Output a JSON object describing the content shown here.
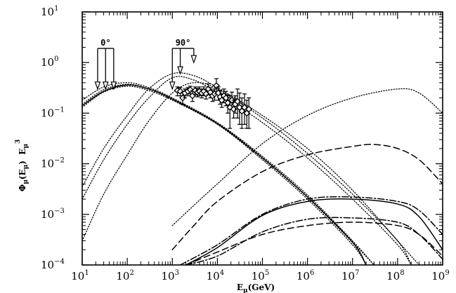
{
  "chart_data": {
    "type": "line",
    "title": "",
    "xlabel": {
      "main": "E",
      "sub": "μ",
      "tail": "(GeV)"
    },
    "ylabel": {
      "pre": "Φ",
      "sub1": "μ",
      "mid": "(E",
      "sub2": "μ",
      "post": ")  E",
      "sub3": "μ",
      "sup": "3"
    },
    "x_scale": "log",
    "y_scale": "log",
    "xlim": [
      10,
      1000000000
    ],
    "ylim": [
      0.0001,
      10
    ],
    "x_ticks": [
      {
        "value": 10,
        "base": "10",
        "exp": "1"
      },
      {
        "value": 100,
        "base": "10",
        "exp": "2"
      },
      {
        "value": 1000,
        "base": "10",
        "exp": "3"
      },
      {
        "value": 10000,
        "base": "10",
        "exp": "4"
      },
      {
        "value": 100000,
        "base": "10",
        "exp": "5"
      },
      {
        "value": 1000000,
        "base": "10",
        "exp": "6"
      },
      {
        "value": 10000000,
        "base": "10",
        "exp": "7"
      },
      {
        "value": 100000000,
        "base": "10",
        "exp": "8"
      },
      {
        "value": 1000000000,
        "base": "10",
        "exp": "9"
      }
    ],
    "y_ticks": [
      {
        "value": 0.0001,
        "base": "10",
        "exp": "−4"
      },
      {
        "value": 0.001,
        "base": "10",
        "exp": "−3"
      },
      {
        "value": 0.01,
        "base": "10",
        "exp": "−2"
      },
      {
        "value": 0.1,
        "base": "10",
        "exp": "−1"
      },
      {
        "value": 1,
        "base": "10",
        "exp": "0"
      },
      {
        "value": 10,
        "base": "10",
        "exp": "1"
      }
    ],
    "grid": false,
    "annotations": [
      {
        "text": "0°",
        "arrows_at_x": [
          22,
          33,
          50
        ],
        "arrow_y_top": 1.9,
        "arrow_y_tip": 0.3
      },
      {
        "text": "90°",
        "arrows_at_x": [
          1000,
          1500,
          3000
        ],
        "arrow_y_top": 1.9,
        "arrow_y_tip": [
          0.3,
          0.6,
          1.0
        ]
      }
    ],
    "series": [
      {
        "style": "dotted",
        "points": [
          [
            10,
            0.18
          ],
          [
            30,
            0.33
          ],
          [
            100,
            0.4
          ],
          [
            300,
            0.32
          ],
          [
            1000,
            0.2
          ],
          [
            10000,
            0.065
          ],
          [
            100000,
            0.014
          ],
          [
            1000000,
            0.0024
          ],
          [
            10000000,
            0.0003
          ],
          [
            30000000,
            0.0001
          ]
        ]
      },
      {
        "style": "dotted",
        "points": [
          [
            10,
            0.15
          ],
          [
            30,
            0.29
          ],
          [
            100,
            0.37
          ],
          [
            300,
            0.3
          ],
          [
            1000,
            0.19
          ],
          [
            10000,
            0.062
          ],
          [
            100000,
            0.013
          ],
          [
            1000000,
            0.0022
          ],
          [
            10000000,
            0.00028
          ],
          [
            30000000,
            0.0001
          ]
        ]
      },
      {
        "style": "dotted",
        "points": [
          [
            10,
            0.13
          ],
          [
            30,
            0.26
          ],
          [
            100,
            0.34
          ],
          [
            300,
            0.28
          ],
          [
            1000,
            0.18
          ],
          [
            10000,
            0.06
          ],
          [
            100000,
            0.012
          ],
          [
            1000000,
            0.002
          ],
          [
            10000000,
            0.00025
          ],
          [
            20000000,
            0.0001
          ]
        ]
      },
      {
        "style": "dotted",
        "points": [
          [
            10,
            0.0035
          ],
          [
            30,
            0.02
          ],
          [
            100,
            0.09
          ],
          [
            300,
            0.3
          ],
          [
            1000,
            0.6
          ],
          [
            3000,
            0.55
          ],
          [
            10000,
            0.32
          ],
          [
            100000,
            0.09
          ],
          [
            1000000,
            0.02
          ],
          [
            10000000,
            0.003
          ],
          [
            100000000,
            0.0003
          ],
          [
            300000000,
            0.0001
          ]
        ]
      },
      {
        "style": "dotted",
        "points": [
          [
            10,
            0.002
          ],
          [
            30,
            0.012
          ],
          [
            100,
            0.06
          ],
          [
            300,
            0.2
          ],
          [
            1000,
            0.5
          ],
          [
            3000,
            0.45
          ],
          [
            10000,
            0.25
          ],
          [
            100000,
            0.065
          ],
          [
            1000000,
            0.013
          ],
          [
            10000000,
            0.002
          ],
          [
            100000000,
            0.00025
          ],
          [
            200000000,
            0.0001
          ]
        ]
      },
      {
        "style": "dotted",
        "points": [
          [
            10,
            0.0003
          ],
          [
            30,
            0.0025
          ],
          [
            100,
            0.015
          ],
          [
            300,
            0.07
          ],
          [
            1000,
            0.25
          ],
          [
            3000,
            0.4
          ],
          [
            10000,
            0.3
          ],
          [
            100000,
            0.08
          ],
          [
            1000000,
            0.016
          ],
          [
            10000000,
            0.0025
          ],
          [
            100000000,
            0.0003
          ],
          [
            200000000,
            0.0001
          ]
        ]
      },
      {
        "style": "dotted",
        "points": [
          [
            1000,
            0.0006
          ],
          [
            3000,
            0.0015
          ],
          [
            10000,
            0.004
          ],
          [
            100000,
            0.025
          ],
          [
            1000000,
            0.09
          ],
          [
            10000000,
            0.2
          ],
          [
            100000000,
            0.3
          ],
          [
            300000000,
            0.25
          ],
          [
            1000000000,
            0.1
          ]
        ]
      },
      {
        "style": "solid",
        "points": [
          [
            10,
            0.14
          ],
          [
            30,
            0.27
          ],
          [
            100,
            0.36
          ],
          [
            300,
            0.3
          ],
          [
            1000,
            0.19
          ],
          [
            10000,
            0.062
          ],
          [
            100000,
            0.013
          ],
          [
            1000000,
            0.0022
          ],
          [
            10000000,
            0.00028
          ],
          [
            20000000,
            0.0001
          ]
        ]
      },
      {
        "style": "solid",
        "points": [
          [
            2000,
            0.0001
          ],
          [
            10000,
            0.00022
          ],
          [
            100000,
            0.00095
          ],
          [
            1000000,
            0.0018
          ],
          [
            10000000,
            0.002
          ],
          [
            100000000,
            0.0016
          ],
          [
            300000000,
            0.0009
          ],
          [
            1000000000,
            0.0002
          ]
        ]
      },
      {
        "style": "dashed",
        "points": [
          [
            1000,
            0.0002
          ],
          [
            3000,
            0.0006
          ],
          [
            10000,
            0.0018
          ],
          [
            100000,
            0.007
          ],
          [
            1000000,
            0.015
          ],
          [
            10000000,
            0.022
          ],
          [
            30000000,
            0.024
          ],
          [
            100000000,
            0.02
          ],
          [
            300000000,
            0.012
          ],
          [
            1000000000,
            0.004
          ]
        ]
      },
      {
        "style": "dashed",
        "points": [
          [
            2000,
            0.0001
          ],
          [
            10000,
            0.00018
          ],
          [
            100000,
            0.0004
          ],
          [
            1000000,
            0.0006
          ],
          [
            10000000,
            0.0007
          ],
          [
            100000000,
            0.0006
          ],
          [
            300000000,
            0.0004
          ],
          [
            1000000000,
            0.00015
          ]
        ]
      },
      {
        "style": "dashdot",
        "points": [
          [
            1500,
            0.0001
          ],
          [
            10000,
            0.00025
          ],
          [
            100000,
            0.001
          ],
          [
            1000000,
            0.002
          ],
          [
            10000000,
            0.0022
          ],
          [
            100000000,
            0.0018
          ],
          [
            300000000,
            0.0012
          ],
          [
            1000000000,
            0.0004
          ]
        ]
      },
      {
        "style": "dashdot",
        "points": [
          [
            2000,
            0.0001
          ],
          [
            10000,
            0.00015
          ],
          [
            100000,
            0.00045
          ],
          [
            1000000,
            0.0008
          ],
          [
            10000000,
            0.00085
          ],
          [
            100000000,
            0.0007
          ],
          [
            300000000,
            0.0004
          ],
          [
            1000000000,
            0.00013
          ]
        ]
      }
    ],
    "measurements": [
      {
        "x": 1300,
        "y": 0.28,
        "err_lo": 0.22,
        "err_hi": 0.33
      },
      {
        "x": 1500,
        "y": 0.27,
        "err_lo": 0.22,
        "err_hi": 0.32
      },
      {
        "x": 1700,
        "y": 0.2,
        "err_lo": 0.15,
        "err_hi": 0.26
      },
      {
        "x": 1900,
        "y": 0.25,
        "err_lo": 0.2,
        "err_hi": 0.3
      },
      {
        "x": 2200,
        "y": 0.27,
        "err_lo": 0.22,
        "err_hi": 0.32
      },
      {
        "x": 2500,
        "y": 0.29,
        "err_lo": 0.24,
        "err_hi": 0.34
      },
      {
        "x": 2800,
        "y": 0.22,
        "err_lo": 0.17,
        "err_hi": 0.28
      },
      {
        "x": 3200,
        "y": 0.28,
        "err_lo": 0.23,
        "err_hi": 0.33
      },
      {
        "x": 3600,
        "y": 0.26,
        "err_lo": 0.21,
        "err_hi": 0.31
      },
      {
        "x": 4000,
        "y": 0.27,
        "err_lo": 0.22,
        "err_hi": 0.33
      },
      {
        "x": 4500,
        "y": 0.25,
        "err_lo": 0.2,
        "err_hi": 0.3
      },
      {
        "x": 5000,
        "y": 0.27,
        "err_lo": 0.22,
        "err_hi": 0.33
      },
      {
        "x": 5600,
        "y": 0.24,
        "err_lo": 0.19,
        "err_hi": 0.29
      },
      {
        "x": 6300,
        "y": 0.3,
        "err_lo": 0.23,
        "err_hi": 0.38
      },
      {
        "x": 7000,
        "y": 0.26,
        "err_lo": 0.2,
        "err_hi": 0.32
      },
      {
        "x": 7800,
        "y": 0.22,
        "err_lo": 0.17,
        "err_hi": 0.28
      },
      {
        "x": 8700,
        "y": 0.24,
        "err_lo": 0.18,
        "err_hi": 0.3
      },
      {
        "x": 9500,
        "y": 0.35,
        "err_lo": 0.24,
        "err_hi": 0.48
      },
      {
        "x": 10500,
        "y": 0.25,
        "err_lo": 0.18,
        "err_hi": 0.33
      },
      {
        "x": 11500,
        "y": 0.21,
        "err_lo": 0.15,
        "err_hi": 0.28
      },
      {
        "x": 12500,
        "y": 0.18,
        "err_lo": 0.13,
        "err_hi": 0.24
      },
      {
        "x": 14000,
        "y": 0.22,
        "err_lo": 0.16,
        "err_hi": 0.3
      },
      {
        "x": 15500,
        "y": 0.2,
        "err_lo": 0.14,
        "err_hi": 0.27
      },
      {
        "x": 17000,
        "y": 0.16,
        "err_lo": 0.1,
        "err_hi": 0.23
      },
      {
        "x": 19000,
        "y": 0.13,
        "err_lo": 0.05,
        "err_hi": 0.22
      },
      {
        "x": 21000,
        "y": 0.18,
        "err_lo": 0.12,
        "err_hi": 0.26
      },
      {
        "x": 23000,
        "y": 0.12,
        "err_lo": 0.08,
        "err_hi": 0.18
      },
      {
        "x": 25000,
        "y": 0.15,
        "err_lo": 0.1,
        "err_hi": 0.22
      },
      {
        "x": 28000,
        "y": 0.17,
        "err_lo": 0.08,
        "err_hi": 0.3
      },
      {
        "x": 31000,
        "y": 0.13,
        "err_lo": 0.06,
        "err_hi": 0.25
      },
      {
        "x": 35000,
        "y": 0.11,
        "err_lo": 0.05,
        "err_hi": 0.2
      },
      {
        "x": 40000,
        "y": 0.13,
        "err_lo": 0.06,
        "err_hi": 0.24
      },
      {
        "x": 45000,
        "y": 0.1,
        "err_lo": 0.05,
        "err_hi": 0.18
      },
      {
        "x": 50000,
        "y": 0.12,
        "err_lo": 0.05,
        "err_hi": 0.2
      }
    ]
  }
}
